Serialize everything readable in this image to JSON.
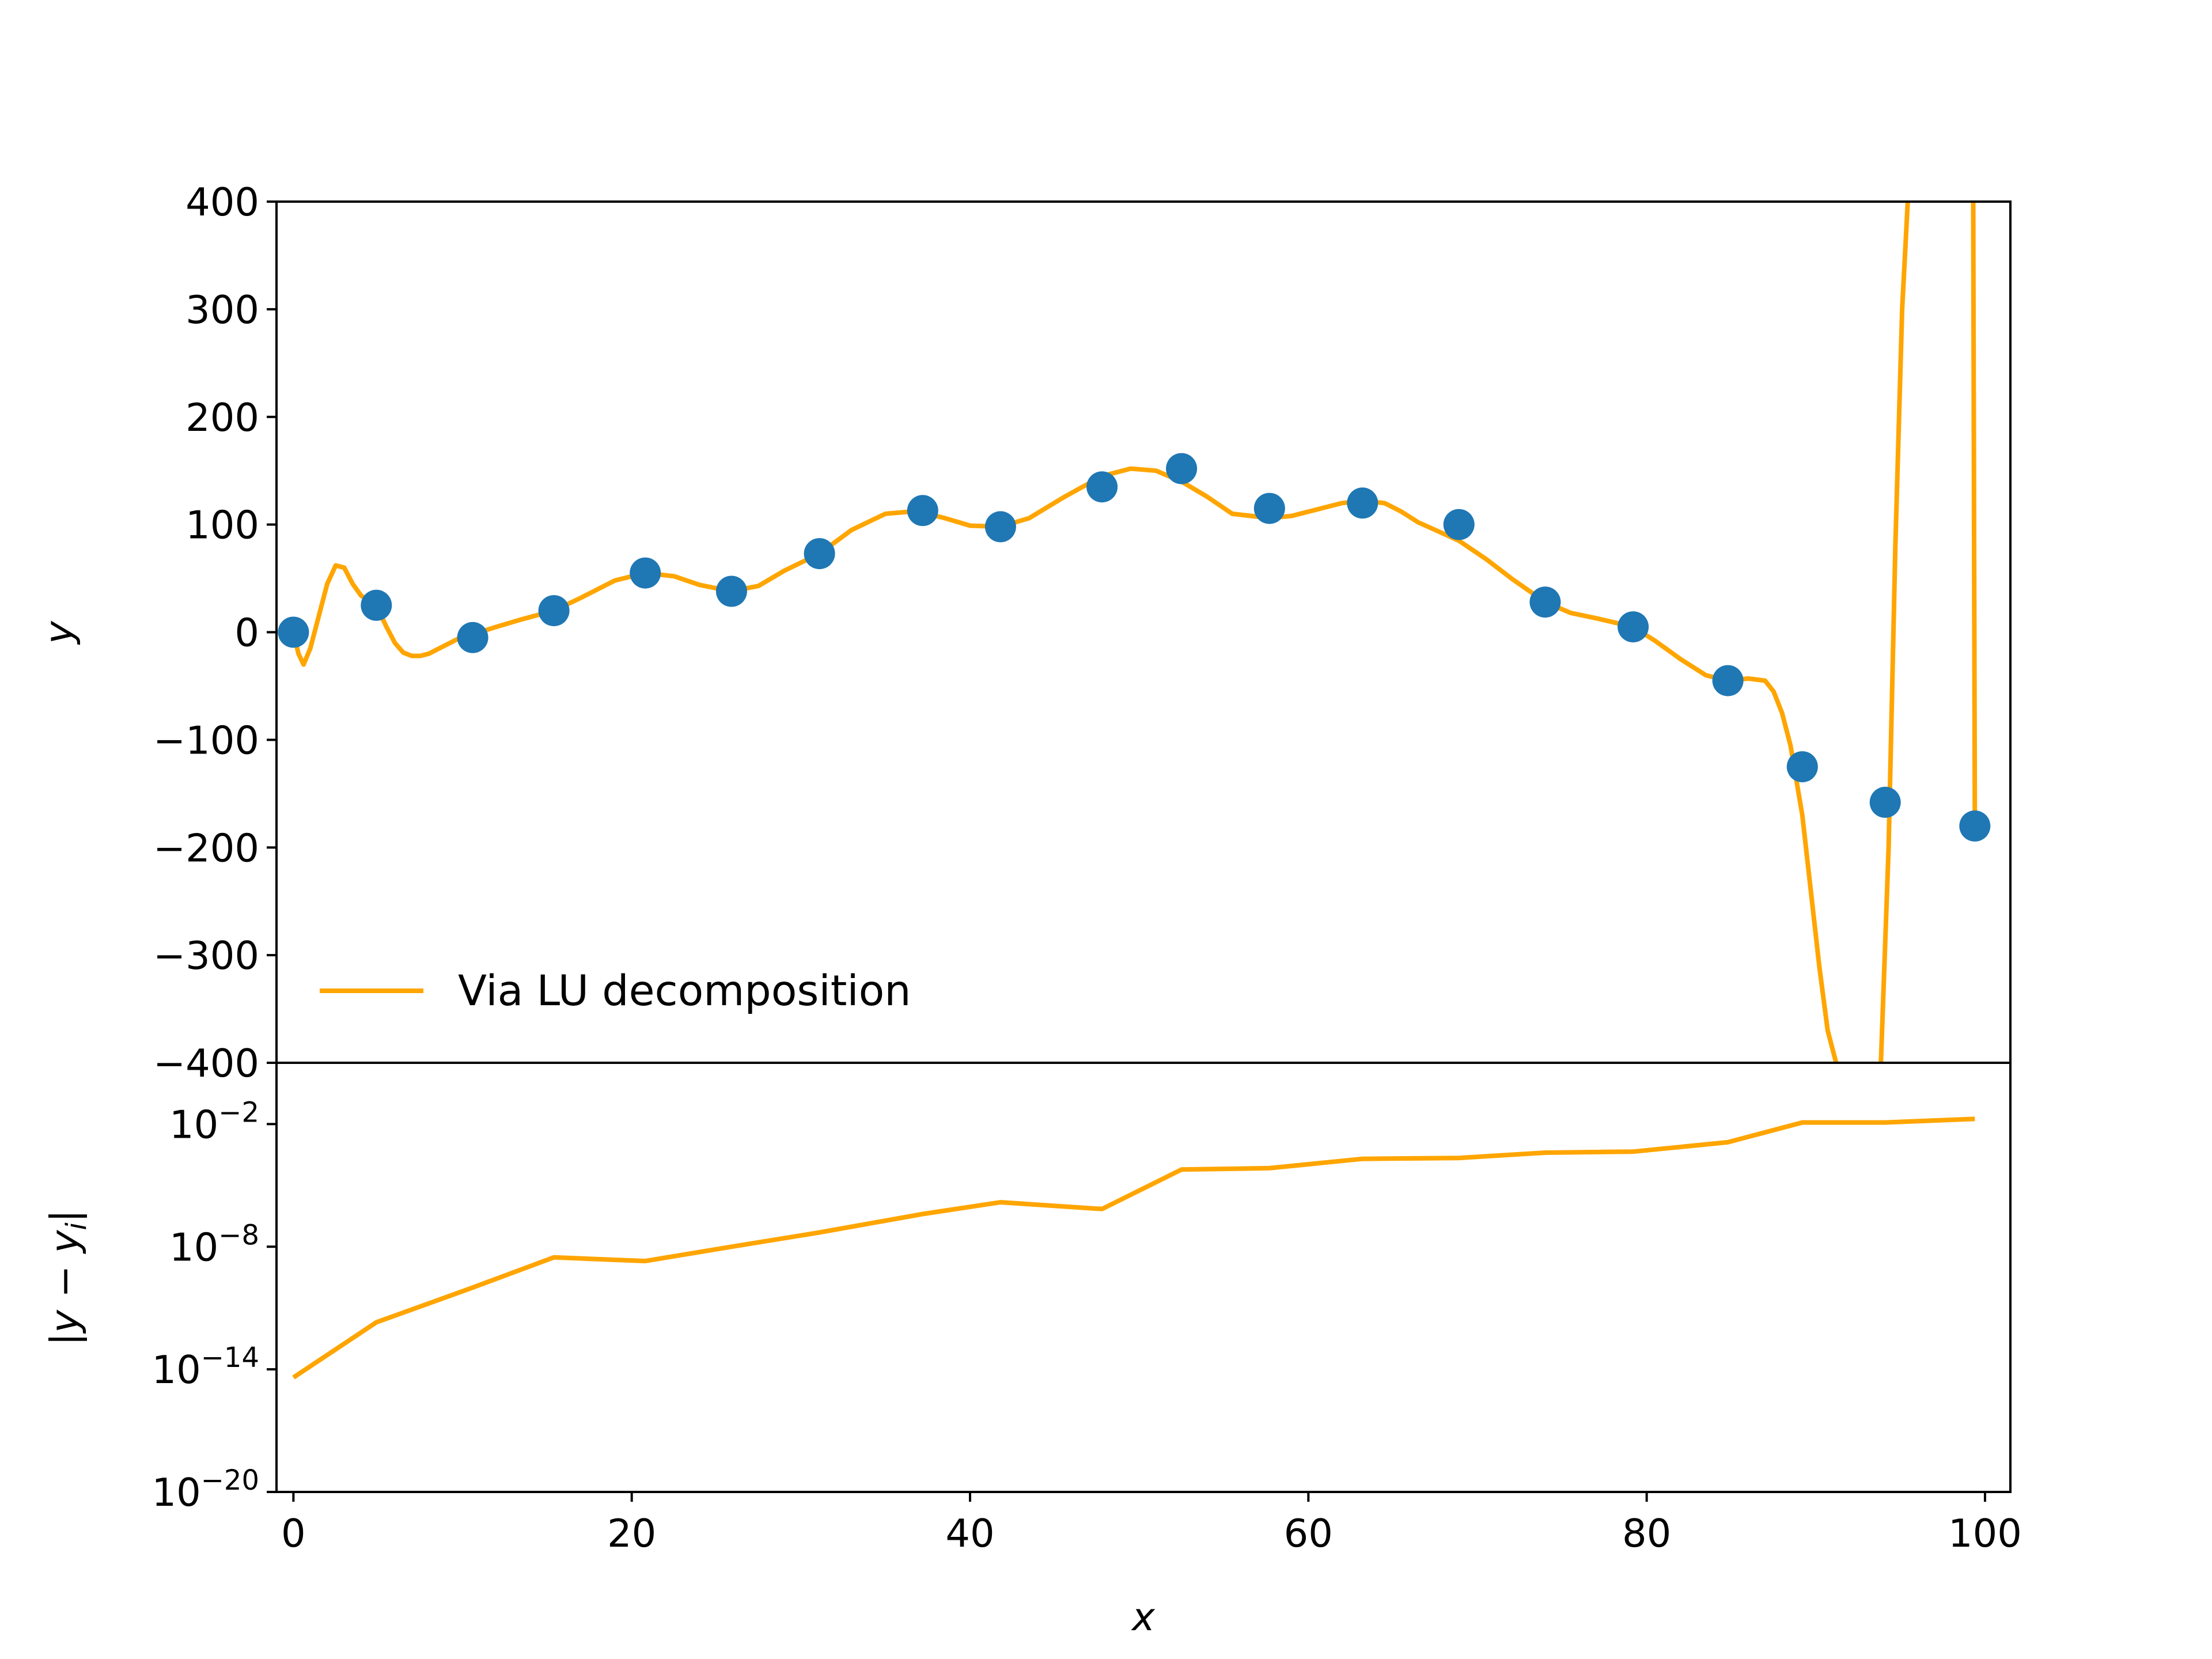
{
  "colors": {
    "points": "#1f77b4",
    "line": "#ffa500",
    "axes": "#000000",
    "background": "#ffffff"
  },
  "chart_data": [
    {
      "type": "line",
      "panel": "top",
      "xlim": [
        -1,
        101.5
      ],
      "ylim": [
        -400,
        400
      ],
      "ylabel": "y",
      "yticks": [
        -400,
        -300,
        -200,
        -100,
        0,
        100,
        200,
        300,
        400
      ],
      "ytick_labels": [
        "−400",
        "−300",
        "−200",
        "−100",
        "0",
        "100",
        "200",
        "300",
        "400"
      ],
      "legend": {
        "placement": "lower-left",
        "entries": [
          "Via LU decomposition"
        ]
      },
      "scatter_points": {
        "x": [
          0,
          4.9,
          10.6,
          15.4,
          20.8,
          25.9,
          31.1,
          37.2,
          41.8,
          47.8,
          52.5,
          57.7,
          63.2,
          68.9,
          74.0,
          79.2,
          84.8,
          89.2,
          94.1,
          99.4
        ],
        "y": [
          0,
          25,
          -5,
          20,
          55,
          38,
          73,
          113,
          98,
          135,
          152,
          115,
          120,
          100,
          28,
          5,
          -45,
          -125,
          -158,
          -180
        ]
      },
      "series": [
        {
          "name": "Via LU decomposition",
          "x": [
            0,
            0.3,
            0.6,
            1.0,
            1.5,
            2.0,
            2.5,
            3.0,
            3.5,
            4.0,
            4.5,
            4.9,
            5.5,
            6.0,
            6.5,
            7.0,
            7.5,
            8.0,
            9.0,
            10.0,
            10.6,
            12.0,
            13.5,
            15.4,
            17.0,
            19.0,
            20.8,
            22.5,
            24.0,
            25.9,
            27.5,
            29.0,
            31.1,
            33.0,
            35.0,
            36.5,
            37.2,
            38.5,
            40.0,
            41.8,
            43.5,
            45.5,
            47.8,
            49.5,
            51.0,
            52.5,
            54.0,
            55.5,
            57.7,
            59.0,
            60.5,
            62.0,
            63.2,
            64.5,
            65.5,
            66.5,
            67.5,
            68.9,
            70.5,
            72.0,
            74.0,
            75.5,
            77.0,
            79.2,
            80.5,
            82.0,
            83.5,
            84.8,
            86.0,
            87.0,
            87.5,
            88.0,
            88.5,
            89.2,
            89.7,
            90.2,
            90.7,
            91.2,
            91.6
          ],
          "y": [
            0,
            -20,
            -30,
            -15,
            15,
            45,
            62,
            60,
            45,
            34,
            29,
            25,
            5,
            -10,
            -19,
            -22,
            -22,
            -20,
            -12,
            -4,
            -2,
            5,
            12,
            20,
            32,
            48,
            55,
            52,
            44,
            38,
            43,
            57,
            73,
            95,
            110,
            112,
            111,
            106,
            99,
            98,
            106,
            125,
            145,
            152,
            150,
            140,
            126,
            110,
            106,
            108,
            114,
            120,
            122,
            120,
            112,
            102,
            95,
            85,
            68,
            50,
            28,
            18,
            13,
            5,
            -8,
            -25,
            -40,
            -45,
            -43,
            -45,
            -55,
            -75,
            -105,
            -170,
            -240,
            -310,
            -370,
            -400,
            -420
          ]
        }
      ],
      "off_scale_segments": [
        {
          "x": [
            93.8,
            94.3,
            94.7,
            95.1,
            95.5
          ],
          "y": [
            -420,
            -200,
            80,
            300,
            420
          ]
        },
        {
          "x": [
            99.3,
            99.4
          ],
          "y": [
            420,
            -180
          ]
        }
      ]
    },
    {
      "type": "line",
      "panel": "bottom",
      "yscale": "log",
      "xlim": [
        -1,
        101.5
      ],
      "ylim": [
        1e-20,
        10.0
      ],
      "xlabel": "x",
      "ylabel": "|y − y",
      "ylabel_sub": "i",
      "ylabel_end": "|",
      "xticks": [
        0,
        20,
        40,
        60,
        80,
        100
      ],
      "xtick_labels": [
        "0",
        "20",
        "40",
        "60",
        "80",
        "100"
      ],
      "yticks_exp": [
        -20,
        -14,
        -8,
        -2
      ],
      "ytick_base": "10",
      "ytick_exp_labels": [
        "−20",
        "−14",
        "−8",
        "−2"
      ],
      "series": [
        {
          "name": "Via LU decomposition",
          "x": [
            0,
            4.9,
            10.6,
            15.4,
            20.8,
            25.9,
            31.1,
            37.2,
            41.8,
            47.8,
            52.5,
            57.7,
            63.2,
            68.9,
            74.0,
            79.2,
            84.8,
            89.2,
            94.1,
            99.4
          ],
          "y": [
            4e-15,
            2e-12,
            1e-10,
            3e-09,
            2e-09,
            1e-08,
            5e-08,
            4e-07,
            1.5e-06,
            7e-07,
            6e-05,
            7e-05,
            0.0002,
            0.00022,
            0.0004,
            0.00045,
            0.0013,
            0.012,
            0.012,
            0.018
          ]
        }
      ]
    }
  ]
}
